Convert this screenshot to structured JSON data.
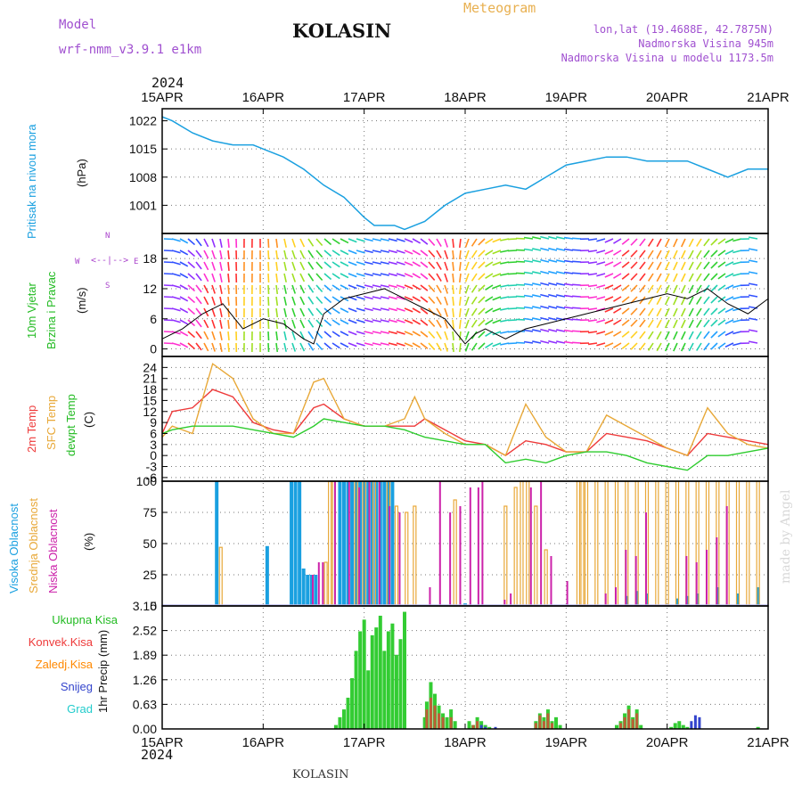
{
  "header": {
    "model_label": "Model",
    "model_name": "wrf-nmm_v3.9.1 e1km",
    "location": "KOLASIN",
    "meteogram_label": "Meteogram",
    "lonlat": "lon,lat (19.4688E, 42.7875N)",
    "elevation": "Nadmorska Visina 945m",
    "model_elevation": "Nadmorska Visina u modelu 1173.5m",
    "footer_location": "KOLASIN",
    "credit": "made by Angel"
  },
  "time_axis": {
    "year": "2024",
    "ticks": [
      "15APR",
      "16APR",
      "17APR",
      "18APR",
      "19APR",
      "20APR",
      "21APR"
    ]
  },
  "colors": {
    "pressure": "#1aa0e0",
    "temp2m": "#ee3a3a",
    "sfc": "#e8a838",
    "dewpt": "#2ecc2e",
    "high_cloud": "#1aa0e0",
    "mid_cloud": "#e8a838",
    "low_cloud": "#cc22aa",
    "total_precip": "#33cc33",
    "convective": "#ee3a3a",
    "frozen": "#ff8800",
    "snow": "#3344cc",
    "graupel": "#22cccc"
  },
  "panels": {
    "pressure": {
      "title": "Pritisak na nivou mora",
      "unit": "(hPa)"
    },
    "wind": {
      "title1": "10m Vjetar",
      "title2": "Brzina i Pravac",
      "unit": "(m/s)",
      "compass_n": "N",
      "compass_w": "W",
      "compass_e": "E",
      "compass_s": "S"
    },
    "temp": {
      "t2m": "2m Temp",
      "sfc": "SFC Temp",
      "dew": "dewpt Temp",
      "unit": "(C)"
    },
    "cloud": {
      "high": "Visoka Oblacnost",
      "mid": "Srednja Oblacnost",
      "low": "Niska Oblacnost",
      "unit": "(%)"
    },
    "precip": {
      "unit": "1hr Precip (mm)",
      "total": "Ukupna Kisa",
      "conv": "Konvek.Kisa",
      "frozen": "Zaledj.Kisa",
      "snow": "Snijeg",
      "graupel": "Grad"
    }
  },
  "chart_data": [
    {
      "type": "line",
      "name": "pressure",
      "x_unit": "days from 15APR 00Z",
      "x": [
        0,
        0.1,
        0.3,
        0.5,
        0.7,
        0.9,
        1.0,
        1.2,
        1.4,
        1.6,
        1.8,
        2.0,
        2.1,
        2.3,
        2.4,
        2.5,
        2.6,
        2.8,
        3.0,
        3.2,
        3.4,
        3.6,
        3.8,
        4.0,
        4.2,
        4.4,
        4.6,
        4.8,
        5.0,
        5.2,
        5.4,
        5.6,
        5.8,
        6.0
      ],
      "y": [
        1023,
        1022,
        1019,
        1017,
        1016,
        1016,
        1015,
        1013,
        1010,
        1006,
        1003,
        998,
        996,
        996,
        995,
        996,
        997,
        1001,
        1004,
        1005,
        1006,
        1005,
        1008,
        1011,
        1012,
        1013,
        1013,
        1012,
        1012,
        1012,
        1010,
        1008,
        1010,
        1010
      ],
      "yticks": [
        1001,
        1008,
        1015,
        1022
      ],
      "ylim": [
        994,
        1025
      ]
    },
    {
      "type": "line",
      "name": "wind",
      "series": [
        {
          "name": "speed",
          "x": [
            0,
            0.2,
            0.4,
            0.6,
            0.8,
            1.0,
            1.2,
            1.4,
            1.5,
            1.6,
            1.8,
            2.0,
            2.2,
            2.4,
            2.6,
            2.8,
            3.0,
            3.1,
            3.2,
            3.4,
            3.6,
            3.8,
            4.0,
            4.2,
            4.4,
            4.6,
            4.8,
            5.0,
            5.2,
            5.4,
            5.6,
            5.8,
            6.0
          ],
          "y": [
            2,
            4,
            7,
            9,
            4,
            6,
            5,
            2,
            1,
            7,
            10,
            11,
            12,
            10,
            8,
            6,
            1,
            3,
            4,
            2,
            4,
            5,
            6,
            7,
            8,
            9,
            10,
            11,
            10,
            12,
            9,
            7,
            10
          ]
        }
      ],
      "yticks": [
        0,
        6,
        12,
        18
      ],
      "ylim": [
        -1.5,
        23
      ]
    },
    {
      "type": "line",
      "name": "temperature",
      "x": [
        0,
        0.1,
        0.3,
        0.5,
        0.7,
        0.9,
        1.1,
        1.3,
        1.5,
        1.6,
        1.8,
        2.0,
        2.2,
        2.4,
        2.5,
        2.6,
        2.8,
        3.0,
        3.2,
        3.4,
        3.6,
        3.8,
        4.0,
        4.2,
        4.4,
        4.6,
        4.8,
        5.0,
        5.2,
        5.4,
        5.6,
        5.8,
        6.0
      ],
      "series": [
        {
          "name": "2m Temp",
          "y": [
            6,
            12,
            13,
            18,
            16,
            9,
            7,
            6,
            13,
            14,
            10,
            8,
            8,
            8,
            8,
            10,
            7,
            4,
            3,
            0,
            4,
            3,
            1,
            1,
            6,
            5,
            4,
            2,
            0,
            6,
            5,
            4,
            3
          ]
        },
        {
          "name": "SFC Temp",
          "y": [
            5,
            8,
            6,
            25,
            21,
            10,
            6,
            6,
            20,
            21,
            10,
            8,
            8,
            10,
            16,
            10,
            6,
            3,
            3,
            0,
            14,
            5,
            1,
            1,
            11,
            8,
            5,
            2,
            0,
            13,
            6,
            3,
            2
          ]
        },
        {
          "name": "dewpt Temp",
          "y": [
            6,
            7,
            8,
            8,
            8,
            7,
            6,
            5,
            8,
            10,
            9,
            8,
            8,
            7,
            6,
            5,
            4,
            3,
            3,
            -2,
            -1,
            -2,
            0,
            1,
            1,
            0,
            -2,
            -3,
            -4,
            0,
            0,
            1,
            2
          ]
        }
      ],
      "yticks": [
        -6,
        -3,
        0,
        3,
        6,
        9,
        12,
        15,
        18,
        21,
        24
      ],
      "ylim": [
        -7,
        27
      ]
    },
    {
      "type": "bar",
      "name": "cloudiness",
      "x_unit": "days from 15APR 00Z",
      "series": [
        {
          "name": "Visoka Oblacnost",
          "x": [
            0.54,
            1.04,
            1.28,
            1.32,
            1.36,
            1.4,
            1.44,
            1.48,
            1.52,
            1.76,
            1.8,
            1.84,
            1.88,
            1.92,
            1.96,
            2.0,
            2.04,
            2.08,
            2.12,
            2.16,
            2.2,
            2.24,
            2.28,
            3.0,
            4.6,
            4.7,
            4.8,
            5.1,
            5.2,
            5.3,
            5.5,
            5.7,
            5.9
          ],
          "y": [
            100,
            48,
            100,
            100,
            100,
            30,
            25,
            25,
            25,
            100,
            100,
            100,
            100,
            100,
            100,
            100,
            100,
            100,
            100,
            100,
            100,
            100,
            100,
            2,
            8,
            12,
            10,
            6,
            8,
            10,
            15,
            10,
            15
          ]
        },
        {
          "name": "Srednja Oblacnost",
          "x": [
            0.58,
            1.62,
            1.66,
            1.7,
            1.92,
            2.0,
            2.1,
            2.24,
            2.32,
            2.42,
            2.5,
            2.9,
            3.4,
            3.5,
            3.56,
            3.62,
            3.7,
            3.8,
            4.12,
            4.16,
            4.2,
            4.3,
            4.4,
            4.5,
            4.6,
            4.7,
            4.8,
            4.9,
            5.0,
            5.1,
            5.2,
            5.3,
            5.4,
            5.5,
            5.6,
            5.7,
            5.8,
            5.9
          ],
          "y": [
            47,
            35,
            100,
            100,
            100,
            100,
            100,
            100,
            80,
            75,
            80,
            85,
            80,
            95,
            100,
            100,
            80,
            45,
            100,
            100,
            100,
            100,
            100,
            100,
            100,
            100,
            100,
            100,
            100,
            100,
            100,
            100,
            100,
            100,
            100,
            100,
            100,
            100
          ]
        },
        {
          "name": "Niska Oblacnost",
          "x": [
            1.5,
            1.56,
            1.6,
            1.72,
            1.86,
            1.96,
            2.06,
            2.16,
            2.26,
            2.36,
            2.66,
            2.76,
            2.86,
            2.96,
            3.06,
            3.14,
            3.18,
            3.4,
            3.46,
            3.66,
            3.76,
            3.86,
            4.02,
            4.4,
            4.5,
            4.6,
            4.7,
            4.8,
            5.2,
            5.3,
            5.4,
            5.5,
            5.6
          ],
          "y": [
            25,
            35,
            35,
            100,
            100,
            95,
            100,
            100,
            80,
            75,
            15,
            100,
            75,
            80,
            95,
            95,
            100,
            5,
            10,
            95,
            100,
            40,
            20,
            10,
            15,
            45,
            40,
            75,
            40,
            35,
            45,
            55,
            80
          ]
        }
      ],
      "yticks": [
        0,
        25,
        50,
        75,
        100
      ],
      "ylim": [
        0,
        100
      ]
    },
    {
      "type": "bar",
      "name": "precipitation",
      "x_unit": "days from 15APR 00Z",
      "series": [
        {
          "name": "Ukupna Kisa",
          "x": [
            1.72,
            1.76,
            1.8,
            1.84,
            1.88,
            1.92,
            1.96,
            2.0,
            2.04,
            2.08,
            2.12,
            2.16,
            2.2,
            2.24,
            2.28,
            2.32,
            2.36,
            2.4,
            2.6,
            2.62,
            2.66,
            2.7,
            2.74,
            2.78,
            2.82,
            2.86,
            2.9,
            3.04,
            3.08,
            3.12,
            3.16,
            3.2,
            3.24,
            3.7,
            3.74,
            3.78,
            3.82,
            3.86,
            3.9,
            3.94,
            4.5,
            4.54,
            4.58,
            4.62,
            4.66,
            4.7,
            4.74,
            5.04,
            5.08,
            5.12,
            5.16,
            5.2,
            5.9
          ],
          "y": [
            0.1,
            0.3,
            0.5,
            0.8,
            1.3,
            2.0,
            2.5,
            2.8,
            1.5,
            2.4,
            2.6,
            2.9,
            2.0,
            2.5,
            2.7,
            1.9,
            2.3,
            3.0,
            0.3,
            0.7,
            1.2,
            0.9,
            0.6,
            0.4,
            0.3,
            0.5,
            0.2,
            0.2,
            0.1,
            0.3,
            0.2,
            0.1,
            0.05,
            0.2,
            0.4,
            0.3,
            0.5,
            0.2,
            0.3,
            0.1,
            0.1,
            0.2,
            0.4,
            0.6,
            0.3,
            0.5,
            0.1,
            0.05,
            0.15,
            0.2,
            0.1,
            0.05,
            0.05
          ]
        },
        {
          "name": "Konvek.Kisa",
          "x": [
            2.62,
            2.66,
            2.7,
            2.74,
            2.78,
            2.86,
            3.08,
            3.12,
            3.7,
            3.74,
            3.78,
            3.82,
            3.86,
            4.54,
            4.58,
            4.62,
            4.66,
            4.7
          ],
          "y": [
            0.5,
            0.8,
            0.6,
            0.4,
            0.3,
            0.3,
            0.1,
            0.2,
            0.15,
            0.35,
            0.2,
            0.4,
            0.15,
            0.15,
            0.3,
            0.5,
            0.25,
            0.4
          ]
        },
        {
          "name": "Snijeg",
          "x": [
            3.16,
            3.2,
            3.3,
            5.24,
            5.28,
            5.32
          ],
          "y": [
            0.1,
            0.05,
            0.05,
            0.2,
            0.35,
            0.3
          ]
        }
      ],
      "yticks": [
        0,
        0.63,
        1.26,
        1.89,
        2.52,
        3.15
      ],
      "ylim": [
        0,
        3.15
      ]
    }
  ]
}
